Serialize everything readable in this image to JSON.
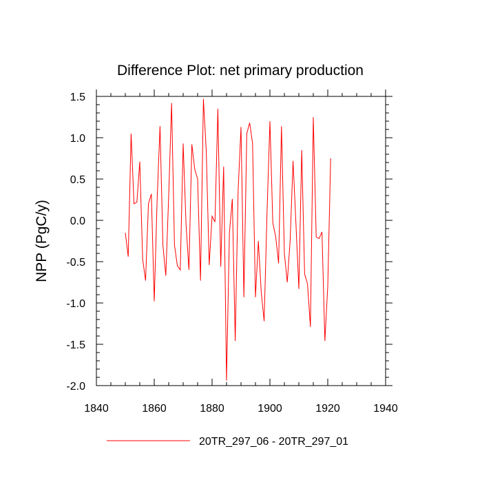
{
  "chart_data": {
    "type": "line",
    "title": "Difference Plot: net primary production",
    "xlabel": "",
    "ylabel": "NPP  (PgC/y)",
    "xlim": [
      1840,
      1940
    ],
    "ylim": [
      -2.0,
      1.5
    ],
    "x_ticks": [
      1840,
      1860,
      1880,
      1900,
      1920,
      1940
    ],
    "x_tick_labels": [
      "1840",
      "1860",
      "1880",
      "1900",
      "1920",
      "1940"
    ],
    "y_ticks": [
      -2.0,
      -1.5,
      -1.0,
      -0.5,
      0.0,
      0.5,
      1.0,
      1.5
    ],
    "y_tick_labels": [
      "-2.0",
      "-1.5",
      "-1.0",
      "-0.5",
      "0.0",
      "0.5",
      "1.0",
      "1.5"
    ],
    "grid": false,
    "legend_position": "bottom",
    "series": [
      {
        "name": "20TR_297_06 - 20TR_297_01",
        "color": "#ff0000",
        "x": [
          1850,
          1851,
          1852,
          1853,
          1854,
          1855,
          1856,
          1857,
          1858,
          1859,
          1860,
          1861,
          1862,
          1863,
          1864,
          1865,
          1866,
          1867,
          1868,
          1869,
          1870,
          1871,
          1872,
          1873,
          1874,
          1875,
          1876,
          1877,
          1878,
          1879,
          1880,
          1881,
          1882,
          1883,
          1884,
          1885,
          1886,
          1887,
          1888,
          1889,
          1890,
          1891,
          1892,
          1893,
          1894,
          1895,
          1896,
          1897,
          1898,
          1899,
          1900,
          1901,
          1902,
          1903,
          1904,
          1905,
          1906,
          1907,
          1908,
          1909,
          1910,
          1911,
          1912,
          1913,
          1914,
          1915,
          1916,
          1917,
          1918,
          1919,
          1920,
          1921
        ],
        "values": [
          -0.15,
          -0.44,
          1.05,
          0.2,
          0.22,
          0.71,
          -0.47,
          -0.73,
          0.2,
          0.32,
          -0.98,
          0.25,
          1.14,
          -0.3,
          -0.67,
          0.3,
          1.42,
          -0.3,
          -0.55,
          -0.6,
          0.93,
          -0.05,
          -0.6,
          0.92,
          0.62,
          0.5,
          -0.73,
          1.47,
          0.83,
          -0.54,
          0.05,
          -0.02,
          1.35,
          -0.56,
          0.65,
          -1.94,
          -0.15,
          0.26,
          -1.46,
          0.35,
          1.13,
          -0.93,
          1.05,
          1.18,
          0.93,
          -0.93,
          -0.25,
          -0.87,
          -1.22,
          0.09,
          1.2,
          -0.03,
          -0.2,
          -0.52,
          1.14,
          -0.4,
          -0.75,
          -0.24,
          0.72,
          -0.04,
          -0.83,
          0.85,
          -0.65,
          -0.77,
          -1.29,
          1.25,
          -0.2,
          -0.22,
          -0.14,
          -1.46,
          -0.8,
          0.75
        ]
      }
    ]
  }
}
